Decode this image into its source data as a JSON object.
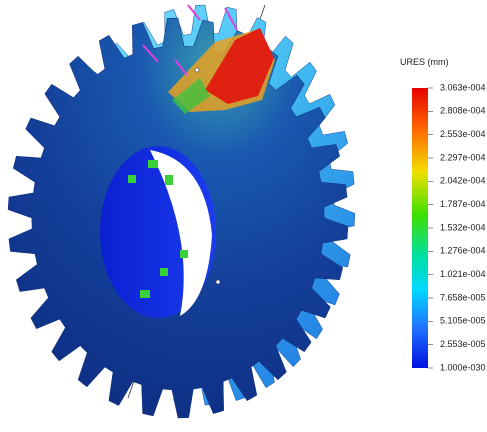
{
  "legend": {
    "title": "URES (mm)",
    "labels": [
      "3.063e-004",
      "2.808e-004",
      "2.553e-004",
      "2.297e-004",
      "2.042e-004",
      "1.787e-004",
      "1.532e-004",
      "1.276e-004",
      "1.021e-004",
      "7.658e-005",
      "5.105e-005",
      "2.553e-005",
      "1.000e-030"
    ]
  }
}
